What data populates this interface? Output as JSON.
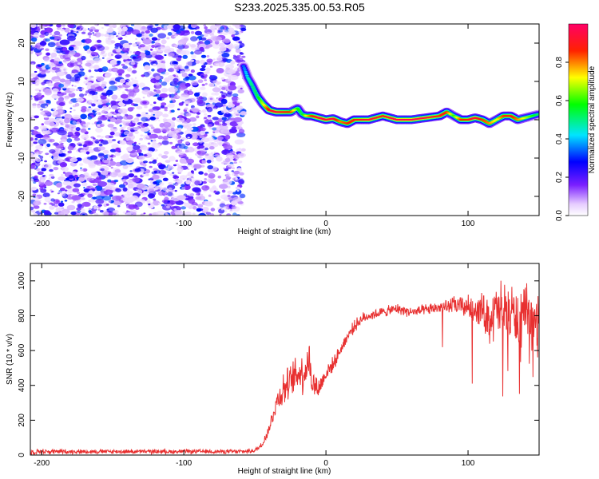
{
  "title": "S233.2025.335.00.53.R05",
  "chart_data": [
    {
      "type": "heatmap",
      "title": "S233.2025.335.00.53.R05",
      "xlabel": "Height of straight line (km)",
      "ylabel": "Frequency (Hz)",
      "xlim": [
        -208,
        150
      ],
      "ylim": [
        -25,
        25
      ],
      "xticks": [
        -200,
        -100,
        0,
        100
      ],
      "yticks": [
        -20,
        -10,
        0,
        10,
        20
      ],
      "noise_region_x": [
        -208,
        -58
      ],
      "noise_amplitude_range": [
        0.0,
        0.3
      ],
      "signal_trace": {
        "x": [
          -58,
          -55,
          -52,
          -48,
          -44,
          -40,
          -35,
          -30,
          -25,
          -20,
          -17,
          -14,
          -10,
          -5,
          0,
          5,
          10,
          15,
          20,
          30,
          40,
          50,
          60,
          70,
          80,
          85,
          90,
          95,
          100,
          105,
          110,
          115,
          120,
          125,
          130,
          135,
          140,
          145,
          150
        ],
        "freq_hz": [
          14,
          11,
          9,
          6,
          4,
          2.5,
          2,
          2,
          2,
          3,
          1.5,
          1,
          1,
          0.5,
          0,
          0.3,
          -0.5,
          -1,
          0,
          0,
          1,
          0,
          0,
          0.5,
          1,
          2,
          1,
          0,
          0,
          0.5,
          0,
          -1,
          0,
          1,
          1,
          0,
          0.5,
          1,
          1.5
        ],
        "amplitude": [
          0.35,
          0.45,
          0.5,
          0.55,
          0.7,
          0.9,
          0.95,
          0.9,
          0.85,
          0.6,
          0.5,
          0.7,
          0.85,
          0.95,
          0.95,
          0.95,
          0.8,
          0.85,
          0.9,
          0.95,
          0.9,
          0.98,
          0.98,
          0.95,
          0.9,
          0.85,
          0.6,
          0.85,
          0.9,
          0.95,
          0.85,
          0.8,
          0.7,
          0.85,
          0.9,
          0.8,
          0.7,
          0.6,
          0.5
        ]
      },
      "colorbar": {
        "label": "Normalized spectral amplitude",
        "range": [
          0.0,
          1.0
        ],
        "ticks": [
          "0.0",
          "0.2",
          "0.4",
          "0.6",
          "0.8"
        ],
        "colors": [
          "#ffffff",
          "#a64dff",
          "#0000ff",
          "#00e5ff",
          "#00ff00",
          "#ffff00",
          "#ff0000",
          "#ff0066"
        ]
      }
    },
    {
      "type": "line",
      "xlabel": "Height of straight line (km)",
      "ylabel": "SNR (10 * v/v)",
      "xlim": [
        -208,
        150
      ],
      "ylim": [
        0,
        1100
      ],
      "xticks": [
        -200,
        -100,
        0,
        100
      ],
      "yticks": [
        0,
        200,
        400,
        600,
        800,
        1000
      ],
      "series": [
        {
          "name": "SNR",
          "color": "#e83030",
          "x": [
            -208,
            -180,
            -150,
            -120,
            -90,
            -60,
            -50,
            -45,
            -40,
            -35,
            -30,
            -25,
            -20,
            -15,
            -12,
            -10,
            -5,
            0,
            5,
            10,
            15,
            20,
            25,
            30,
            40,
            50,
            60,
            70,
            80,
            90,
            100,
            110,
            115,
            120,
            125,
            130,
            135,
            140,
            145,
            150
          ],
          "y": [
            20,
            20,
            20,
            20,
            20,
            20,
            25,
            60,
            150,
            300,
            380,
            420,
            470,
            480,
            560,
            420,
            380,
            470,
            520,
            600,
            680,
            740,
            780,
            800,
            820,
            840,
            820,
            830,
            850,
            860,
            850,
            830,
            780,
            820,
            830,
            820,
            780,
            800,
            780,
            760
          ],
          "noise_amplitude": [
            20,
            15,
            15,
            15,
            15,
            15,
            15,
            25,
            40,
            80,
            120,
            110,
            140,
            150,
            150,
            100,
            80,
            60,
            50,
            40,
            40,
            40,
            40,
            35,
            35,
            35,
            35,
            40,
            40,
            60,
            80,
            120,
            160,
            200,
            220,
            200,
            200,
            200,
            200,
            180
          ]
        }
      ]
    }
  ]
}
